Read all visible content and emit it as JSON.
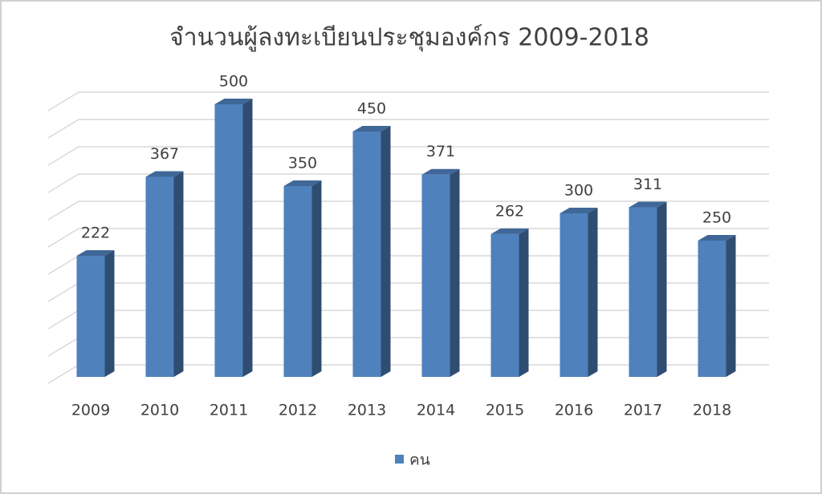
{
  "chart_data": {
    "type": "bar3d",
    "title": "จำนวนผู้ลงทะเบียนประชุมองค์กร   2009-2018",
    "categories": [
      "2009",
      "2010",
      "2011",
      "2012",
      "2013",
      "2014",
      "2015",
      "2016",
      "2017",
      "2018"
    ],
    "series": [
      {
        "name": "คน",
        "color": "#4f81bd",
        "values": [
          222,
          367,
          500,
          350,
          450,
          371,
          262,
          300,
          311,
          250
        ]
      }
    ],
    "ylim": [
      0,
      500
    ],
    "yticks": [
      0,
      50,
      100,
      150,
      200,
      250,
      300,
      350,
      400,
      450,
      500
    ],
    "grid": true,
    "legend": "bottom"
  }
}
